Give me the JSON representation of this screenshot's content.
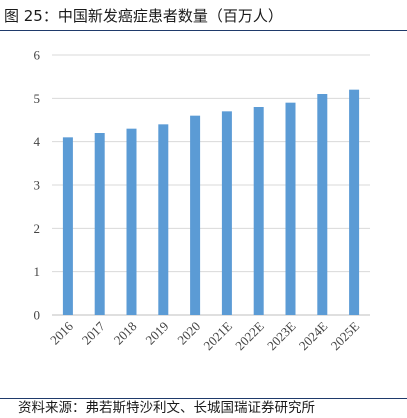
{
  "title": "图 25：中国新发癌症患者数量（百万人）",
  "source": "资料来源：弗若斯特沙利文、长城国瑞证券研究所",
  "colors": {
    "bar": "#5b9bd5",
    "grid": "#d9d9d9",
    "axis": "#bfbfbf",
    "rule": "#1f3a6b"
  },
  "chart_data": {
    "type": "bar",
    "title": "图 25：中国新发癌症患者数量（百万人）",
    "xlabel": "",
    "ylabel": "",
    "categories": [
      "2016",
      "2017",
      "2018",
      "2019",
      "2020",
      "2021E",
      "2022E",
      "2023E",
      "2024E",
      "2025E"
    ],
    "values": [
      4.1,
      4.2,
      4.3,
      4.4,
      4.6,
      4.7,
      4.8,
      4.9,
      5.1,
      5.2
    ],
    "ylim": [
      0,
      6
    ],
    "yticks": [
      0,
      1,
      2,
      3,
      4,
      5,
      6
    ],
    "grid": true,
    "legend": "none"
  }
}
